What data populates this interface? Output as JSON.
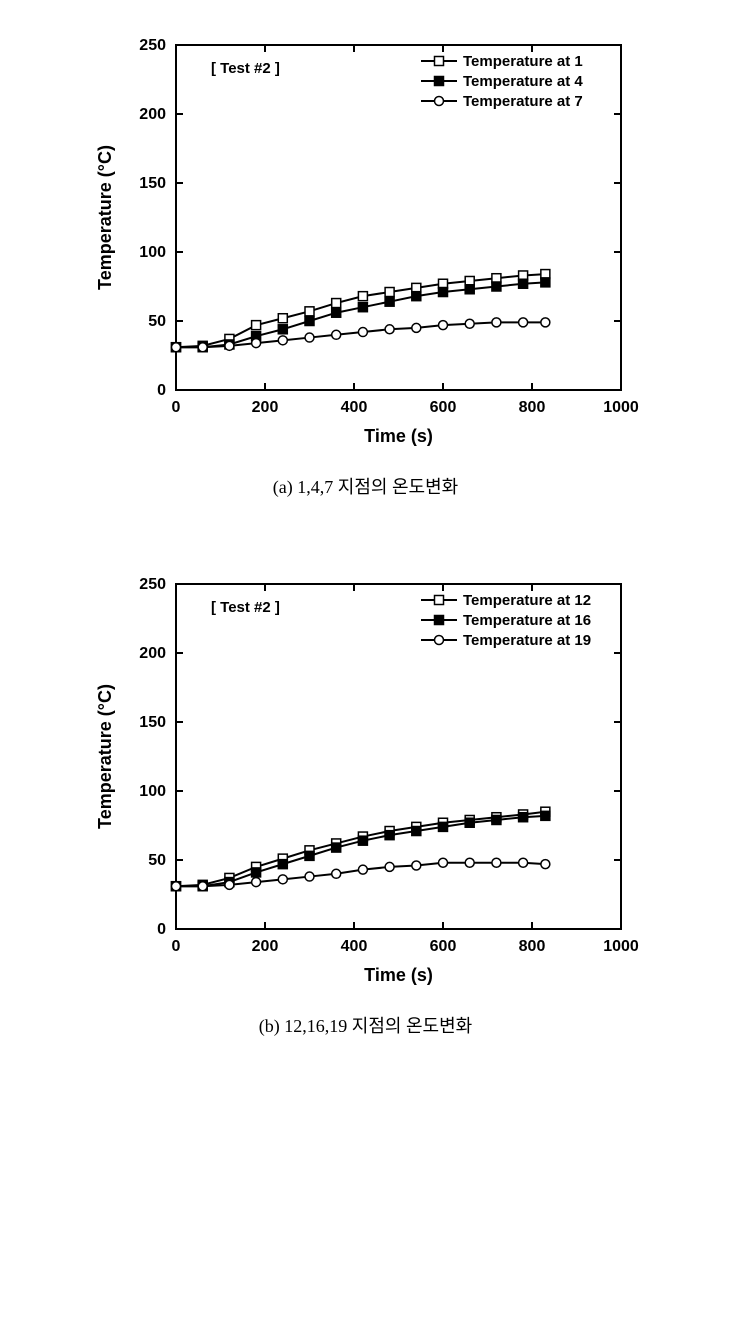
{
  "global": {
    "background_color": "#ffffff",
    "axis_color": "#000000",
    "tick_color": "#000000",
    "text_color": "#000000",
    "line_color": "#000000",
    "font_family": "Arial",
    "axis_width": 2,
    "line_width": 2,
    "tick_length": 7,
    "tick_width": 2,
    "label_fontsize": 18,
    "tick_fontsize": 16,
    "legend_fontsize": 15,
    "annotation_fontsize": 15
  },
  "chart_a": {
    "type": "line",
    "annotation": "[ Test #2 ]",
    "xlabel": "Time (s)",
    "ylabel": "Temperature (°C)",
    "xlim": [
      0,
      1000
    ],
    "ylim": [
      0,
      250
    ],
    "xtick_step": 200,
    "ytick_step": 50,
    "legend_position": "top-right",
    "series": [
      {
        "name": "Temperature at 1",
        "marker": "open-square",
        "marker_size": 9,
        "fill": "#ffffff",
        "stroke": "#000000",
        "x": [
          0,
          60,
          120,
          180,
          240,
          300,
          360,
          420,
          480,
          540,
          600,
          660,
          720,
          780,
          830
        ],
        "y": [
          31,
          32,
          37,
          47,
          52,
          57,
          63,
          68,
          71,
          74,
          77,
          79,
          81,
          83,
          84
        ]
      },
      {
        "name": "Temperature at 4",
        "marker": "filled-square",
        "marker_size": 9,
        "fill": "#000000",
        "stroke": "#000000",
        "x": [
          0,
          60,
          120,
          180,
          240,
          300,
          360,
          420,
          480,
          540,
          600,
          660,
          720,
          780,
          830
        ],
        "y": [
          31,
          31,
          33,
          39,
          44,
          50,
          56,
          60,
          64,
          68,
          71,
          73,
          75,
          77,
          78
        ]
      },
      {
        "name": "Temperature at 7",
        "marker": "open-circle",
        "marker_size": 9,
        "fill": "#ffffff",
        "stroke": "#000000",
        "x": [
          0,
          60,
          120,
          180,
          240,
          300,
          360,
          420,
          480,
          540,
          600,
          660,
          720,
          780,
          830
        ],
        "y": [
          31,
          31,
          32,
          34,
          36,
          38,
          40,
          42,
          44,
          45,
          47,
          48,
          49,
          49,
          49
        ]
      }
    ]
  },
  "chart_b": {
    "type": "line",
    "annotation": "[ Test #2 ]",
    "xlabel": "Time (s)",
    "ylabel": "Temperature (°C)",
    "xlim": [
      0,
      1000
    ],
    "ylim": [
      0,
      250
    ],
    "xtick_step": 200,
    "ytick_step": 50,
    "legend_position": "top-right",
    "series": [
      {
        "name": "Temperature at 12",
        "marker": "open-square",
        "marker_size": 9,
        "fill": "#ffffff",
        "stroke": "#000000",
        "x": [
          0,
          60,
          120,
          180,
          240,
          300,
          360,
          420,
          480,
          540,
          600,
          660,
          720,
          780,
          830
        ],
        "y": [
          31,
          32,
          37,
          45,
          51,
          57,
          62,
          67,
          71,
          74,
          77,
          79,
          81,
          83,
          85
        ]
      },
      {
        "name": "Temperature at 16",
        "marker": "filled-square",
        "marker_size": 9,
        "fill": "#000000",
        "stroke": "#000000",
        "x": [
          0,
          60,
          120,
          180,
          240,
          300,
          360,
          420,
          480,
          540,
          600,
          660,
          720,
          780,
          830
        ],
        "y": [
          31,
          31,
          34,
          41,
          47,
          53,
          59,
          64,
          68,
          71,
          74,
          77,
          79,
          81,
          82
        ]
      },
      {
        "name": "Temperature at 19",
        "marker": "open-circle",
        "marker_size": 9,
        "fill": "#ffffff",
        "stroke": "#000000",
        "x": [
          0,
          60,
          120,
          180,
          240,
          300,
          360,
          420,
          480,
          540,
          600,
          660,
          720,
          780,
          830
        ],
        "y": [
          31,
          31,
          32,
          34,
          36,
          38,
          40,
          43,
          45,
          46,
          48,
          48,
          48,
          48,
          47
        ]
      }
    ]
  },
  "captions": {
    "a": "(a) 1,4,7 지점의 온도변화",
    "b": "(b) 12,16,19 지점의 온도변화"
  }
}
